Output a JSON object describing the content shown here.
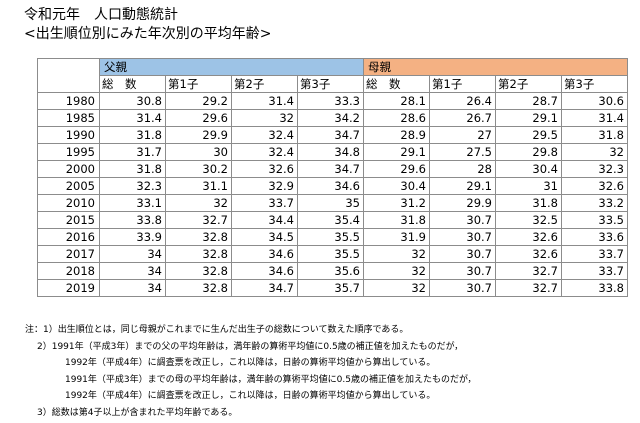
{
  "title": "令和元年　人口動態統計",
  "subtitle": "<出生順位別にみた年次別の平均年齢>",
  "groups": {
    "father": "父親",
    "mother": "母親"
  },
  "columns": [
    "総　数",
    "第1子",
    "第2子",
    "第3子"
  ],
  "rows": [
    {
      "year": "1980",
      "f": [
        "30.8",
        "29.2",
        "31.4",
        "33.3"
      ],
      "m": [
        "28.1",
        "26.4",
        "28.7",
        "30.6"
      ]
    },
    {
      "year": "1985",
      "f": [
        "31.4",
        "29.6",
        "32",
        "34.2"
      ],
      "m": [
        "28.6",
        "26.7",
        "29.1",
        "31.4"
      ]
    },
    {
      "year": "1990",
      "f": [
        "31.8",
        "29.9",
        "32.4",
        "34.7"
      ],
      "m": [
        "28.9",
        "27",
        "29.5",
        "31.8"
      ]
    },
    {
      "year": "1995",
      "f": [
        "31.7",
        "30",
        "32.4",
        "34.8"
      ],
      "m": [
        "29.1",
        "27.5",
        "29.8",
        "32"
      ]
    },
    {
      "year": "2000",
      "f": [
        "31.8",
        "30.2",
        "32.6",
        "34.7"
      ],
      "m": [
        "29.6",
        "28",
        "30.4",
        "32.3"
      ]
    },
    {
      "year": "2005",
      "f": [
        "32.3",
        "31.1",
        "32.9",
        "34.6"
      ],
      "m": [
        "30.4",
        "29.1",
        "31",
        "32.6"
      ]
    },
    {
      "year": "2010",
      "f": [
        "33.1",
        "32",
        "33.7",
        "35"
      ],
      "m": [
        "31.2",
        "29.9",
        "31.8",
        "33.2"
      ]
    },
    {
      "year": "2015",
      "f": [
        "33.8",
        "32.7",
        "34.4",
        "35.4"
      ],
      "m": [
        "31.8",
        "30.7",
        "32.5",
        "33.5"
      ]
    },
    {
      "year": "2016",
      "f": [
        "33.9",
        "32.8",
        "34.5",
        "35.5"
      ],
      "m": [
        "31.9",
        "30.7",
        "32.6",
        "33.6"
      ]
    },
    {
      "year": "2017",
      "f": [
        "34",
        "32.8",
        "34.6",
        "35.5"
      ],
      "m": [
        "32",
        "30.7",
        "32.6",
        "33.7"
      ]
    },
    {
      "year": "2018",
      "f": [
        "34",
        "32.8",
        "34.6",
        "35.6"
      ],
      "m": [
        "32",
        "30.7",
        "32.7",
        "33.7"
      ]
    },
    {
      "year": "2019",
      "f": [
        "34",
        "32.8",
        "34.7",
        "35.7"
      ],
      "m": [
        "32",
        "30.7",
        "32.7",
        "33.8"
      ]
    }
  ],
  "notes": [
    "注：1）出生順位とは，同じ母親がこれまでに生んだ出生子の総数について数えた順序である。",
    "2）1991年（平成3年）までの父の平均年齢は，満年齢の算術平均値に0.5歳の補正値を加えたものだが，",
    "1992年（平成4年）に調査票を改正し，これ以降は，日齢の算術平均値から算出している。",
    "1991年（平成3年）までの母の平均年齢は，満年齢の算術平均値に0.5歳の補正値を加えたものだが，",
    "1992年（平成4年）に調査票を改正し，これ以降は，日齢の算術平均値から算出している。",
    "3）総数は第4子以上が含まれた平均年齢である。"
  ]
}
